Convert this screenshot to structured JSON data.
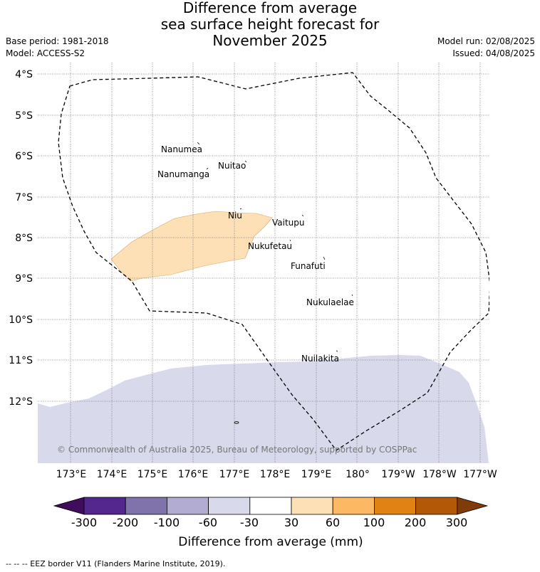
{
  "title_lines": [
    "Difference from average",
    "sea surface height forecast for",
    "November 2025"
  ],
  "meta_left": {
    "base_period": "Base period: 1981-2018",
    "model": "Model: ACCESS-S2"
  },
  "meta_right": {
    "model_run": "Model run: 02/08/2025",
    "issued": "Issued: 04/08/2025"
  },
  "map": {
    "lat_labels": [
      "4°S",
      "5°S",
      "6°S",
      "7°S",
      "8°S",
      "9°S",
      "10°S",
      "11°S",
      "12°S"
    ],
    "lon_labels": [
      "173°E",
      "174°E",
      "175°E",
      "176°E",
      "177°E",
      "178°E",
      "179°E",
      "180°",
      "179°W",
      "178°W",
      "177°W"
    ],
    "islands": [
      "Nanumea",
      "Nuitao",
      "Nanumanga",
      "Niu",
      "Vaitupu",
      "Nukufetau",
      "Funafuti",
      "Nukulaelae",
      "Nuilakita"
    ],
    "copyright": "© Commonwealth of Australia 2025, Bureau of Meteorology, supported by COSPPac",
    "colors": {
      "positive_30_60": "#fde0b6",
      "negative_60_30": "#d8d9ea",
      "grid": "#777777",
      "eez": "#000000"
    }
  },
  "colorbar": {
    "ticks": [
      "-300",
      "-200",
      "-100",
      "-60",
      "-30",
      "30",
      "60",
      "100",
      "200",
      "300"
    ],
    "colors": [
      "#3f0d5c",
      "#54278f",
      "#8073ac",
      "#b2abd2",
      "#d8daeb",
      "#ffffff",
      "#fee0b6",
      "#fdb863",
      "#e08214",
      "#b35806",
      "#7f3b08"
    ],
    "label": "Difference from average (mm)"
  },
  "footer": "--  --  -- EEZ border V11 (Flanders Marine Institute, 2019)."
}
